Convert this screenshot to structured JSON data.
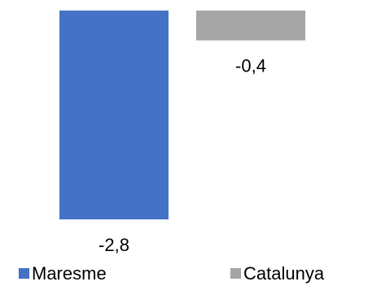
{
  "chart_data": {
    "type": "bar",
    "categories": [
      null
    ],
    "series": [
      {
        "name": "Maresme",
        "color": "#4472c4",
        "values": [
          -2.8
        ],
        "value_labels": [
          "-2,8"
        ]
      },
      {
        "name": "Catalunya",
        "color": "#a5a5a5",
        "values": [
          -0.4
        ],
        "value_labels": [
          "-0,4"
        ]
      }
    ],
    "legend": "bottom"
  }
}
